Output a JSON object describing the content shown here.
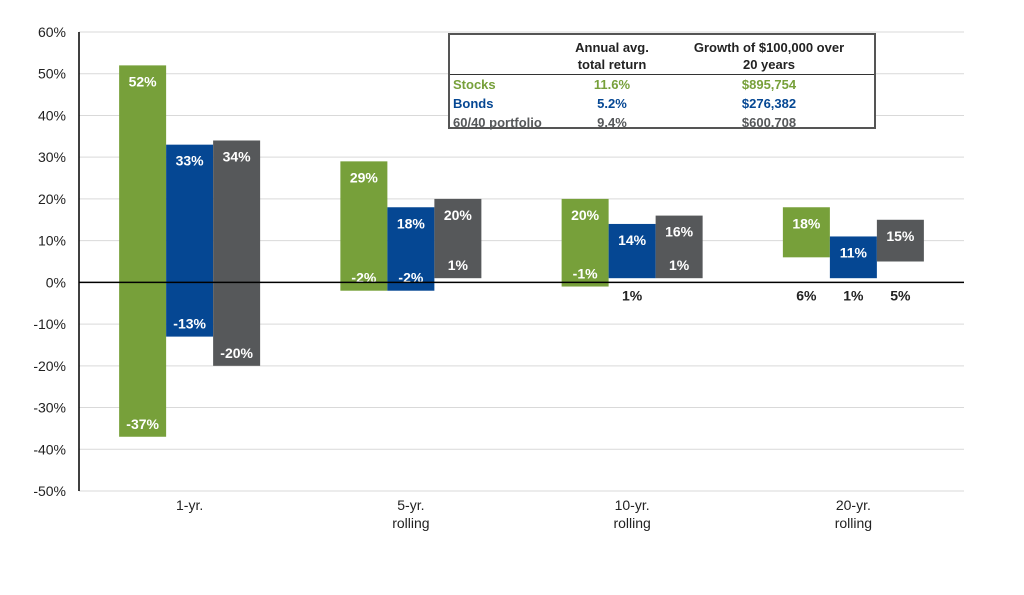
{
  "chart_data": {
    "type": "bar",
    "subtype": "floating-range",
    "categories": [
      "1-yr.",
      "5-yr.\nrolling",
      "10-yr.\nrolling",
      "20-yr.\nrolling"
    ],
    "series": [
      {
        "name": "Stocks",
        "color": "#77a03a",
        "high": [
          52,
          29,
          20,
          18
        ],
        "low": [
          -37,
          -2,
          -1,
          6
        ]
      },
      {
        "name": "Bonds",
        "color": "#054793",
        "high": [
          33,
          18,
          14,
          11
        ],
        "low": [
          -13,
          -2,
          1,
          1
        ]
      },
      {
        "name": "60/40 portfolio",
        "color": "#56585a",
        "high": [
          34,
          20,
          16,
          15
        ],
        "low": [
          -20,
          1,
          1,
          5
        ]
      }
    ],
    "ylim": [
      -50,
      60
    ],
    "yticks": [
      60,
      50,
      40,
      30,
      20,
      10,
      0,
      -10,
      -20,
      -30,
      -40,
      -50
    ],
    "ytick_format": "{v}%",
    "grid": true,
    "title": "",
    "xlabel": "",
    "ylabel": ""
  },
  "legend_table": {
    "header_return": "Annual avg.\ntotal return",
    "header_growth": "Growth of $100,000 over\n20 years",
    "rows": [
      {
        "name": "Stocks",
        "return": "11.6%",
        "growth": "$895,754",
        "color": "#77a03a"
      },
      {
        "name": "Bonds",
        "return": "5.2%",
        "growth": "$276,382",
        "color": "#054793"
      },
      {
        "name": "60/40 portfolio",
        "return": "9.4%",
        "growth": "$600,708",
        "color": "#56585a"
      }
    ]
  }
}
